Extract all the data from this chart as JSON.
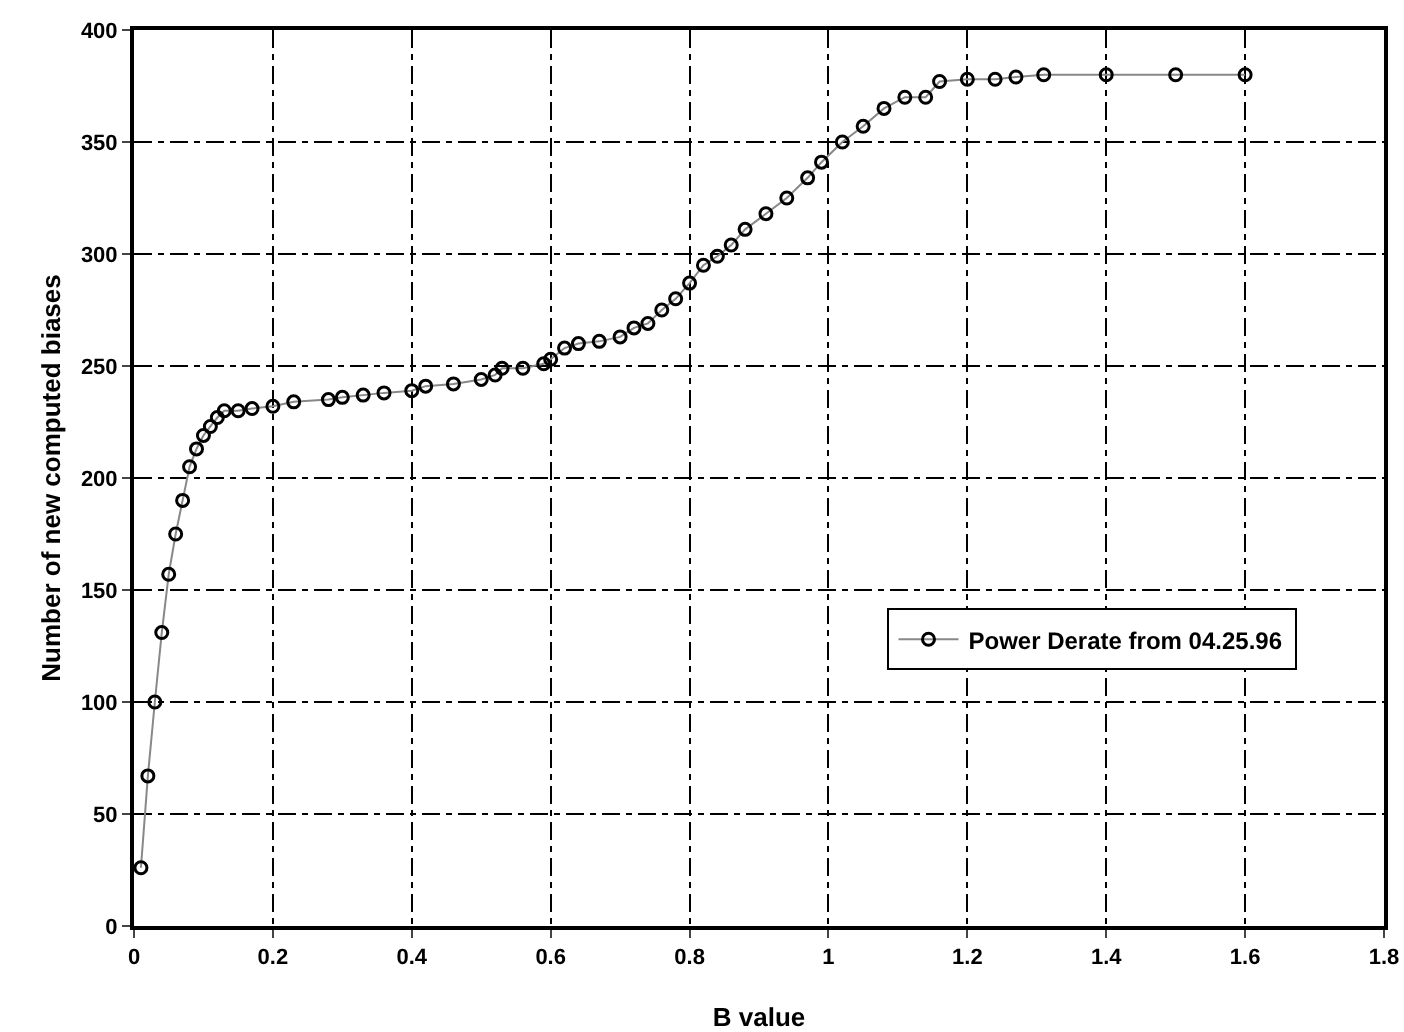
{
  "chart_data": {
    "type": "line",
    "xlabel": "B value",
    "ylabel": "Number of new computed biases",
    "xlim": [
      0,
      1.8
    ],
    "xticks": [
      0,
      0.2,
      0.4,
      0.6,
      0.8,
      1,
      1.2,
      1.4,
      1.6,
      1.8
    ],
    "ylim": [
      0,
      400
    ],
    "yticks": [
      0,
      50,
      100,
      150,
      200,
      250,
      300,
      350,
      400
    ],
    "grid": true,
    "legend": "right",
    "marker": "circle",
    "line_style": "solid",
    "series": [
      {
        "name": "Power Derate from 04.25.96",
        "color": "#000000",
        "x": [
          0.01,
          0.02,
          0.03,
          0.04,
          0.05,
          0.06,
          0.07,
          0.08,
          0.09,
          0.1,
          0.11,
          0.12,
          0.13,
          0.15,
          0.17,
          0.2,
          0.23,
          0.28,
          0.3,
          0.33,
          0.36,
          0.4,
          0.42,
          0.46,
          0.5,
          0.52,
          0.53,
          0.56,
          0.59,
          0.6,
          0.62,
          0.64,
          0.67,
          0.7,
          0.72,
          0.74,
          0.76,
          0.78,
          0.8,
          0.82,
          0.84,
          0.86,
          0.88,
          0.91,
          0.94,
          0.97,
          0.99,
          1.02,
          1.05,
          1.08,
          1.11,
          1.14,
          1.16,
          1.2,
          1.24,
          1.27,
          1.31,
          1.4,
          1.5,
          1.6
        ],
        "values": [
          26,
          67,
          100,
          131,
          157,
          175,
          190,
          205,
          213,
          219,
          223,
          227,
          230,
          230,
          231,
          232,
          234,
          235,
          236,
          237,
          238,
          239,
          241,
          242,
          244,
          246,
          249,
          249,
          251,
          253,
          258,
          260,
          261,
          263,
          267,
          269,
          275,
          280,
          287,
          295,
          299,
          304,
          311,
          318,
          325,
          334,
          341,
          350,
          357,
          365,
          370,
          370,
          377,
          378,
          378,
          379,
          380,
          380,
          380,
          380
        ]
      }
    ]
  }
}
